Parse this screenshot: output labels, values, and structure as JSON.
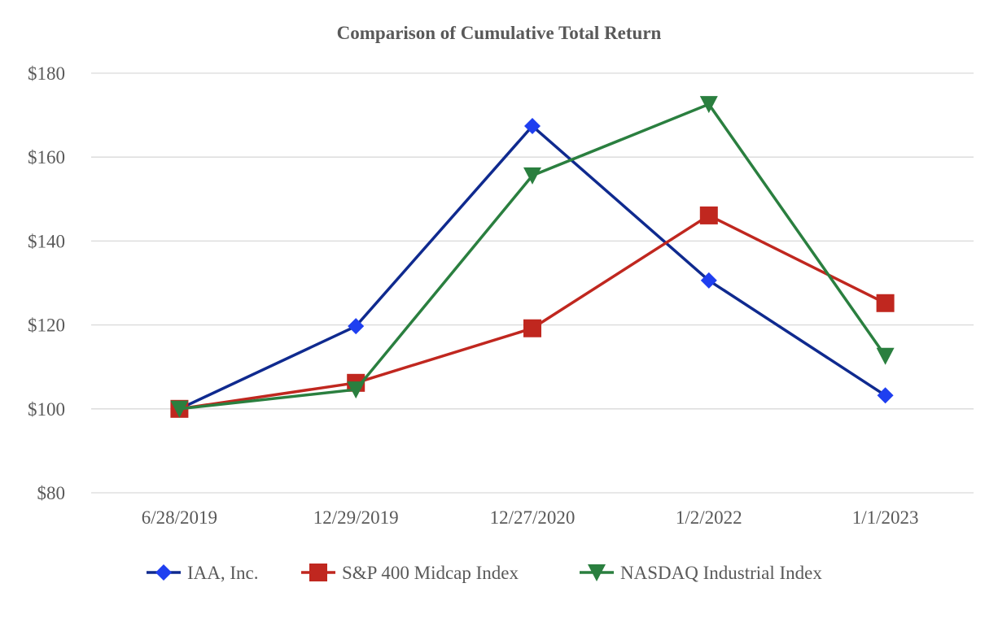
{
  "chart_data": {
    "type": "line",
    "title": "Comparison of Cumulative Total Return",
    "xlabel": "",
    "ylabel": "",
    "categories": [
      "6/28/2019",
      "12/29/2019",
      "12/27/2020",
      "1/2/2022",
      "1/1/2023"
    ],
    "y_ticks": [
      "$80",
      "$100",
      "$120",
      "$140",
      "$160",
      "$180"
    ],
    "ylim": [
      80,
      180
    ],
    "grid": true,
    "legend_position": "bottom",
    "series": [
      {
        "name": "IAA, Inc.",
        "color": "#0f2a8f",
        "marker_color": "#1f3ff0",
        "marker": "diamond",
        "values": [
          100,
          119.7,
          167.4,
          130.6,
          103.2
        ]
      },
      {
        "name": "S&P 400 Midcap Index",
        "color": "#c0271f",
        "marker_color": "#c0271f",
        "marker": "square",
        "values": [
          100,
          106.2,
          119.2,
          146.1,
          125.2
        ]
      },
      {
        "name": "NASDAQ Industrial Index",
        "color": "#2a7f3f",
        "marker_color": "#2a7f3f",
        "marker": "triangle-down",
        "values": [
          100,
          104.6,
          155.6,
          172.6,
          112.6
        ]
      }
    ]
  }
}
